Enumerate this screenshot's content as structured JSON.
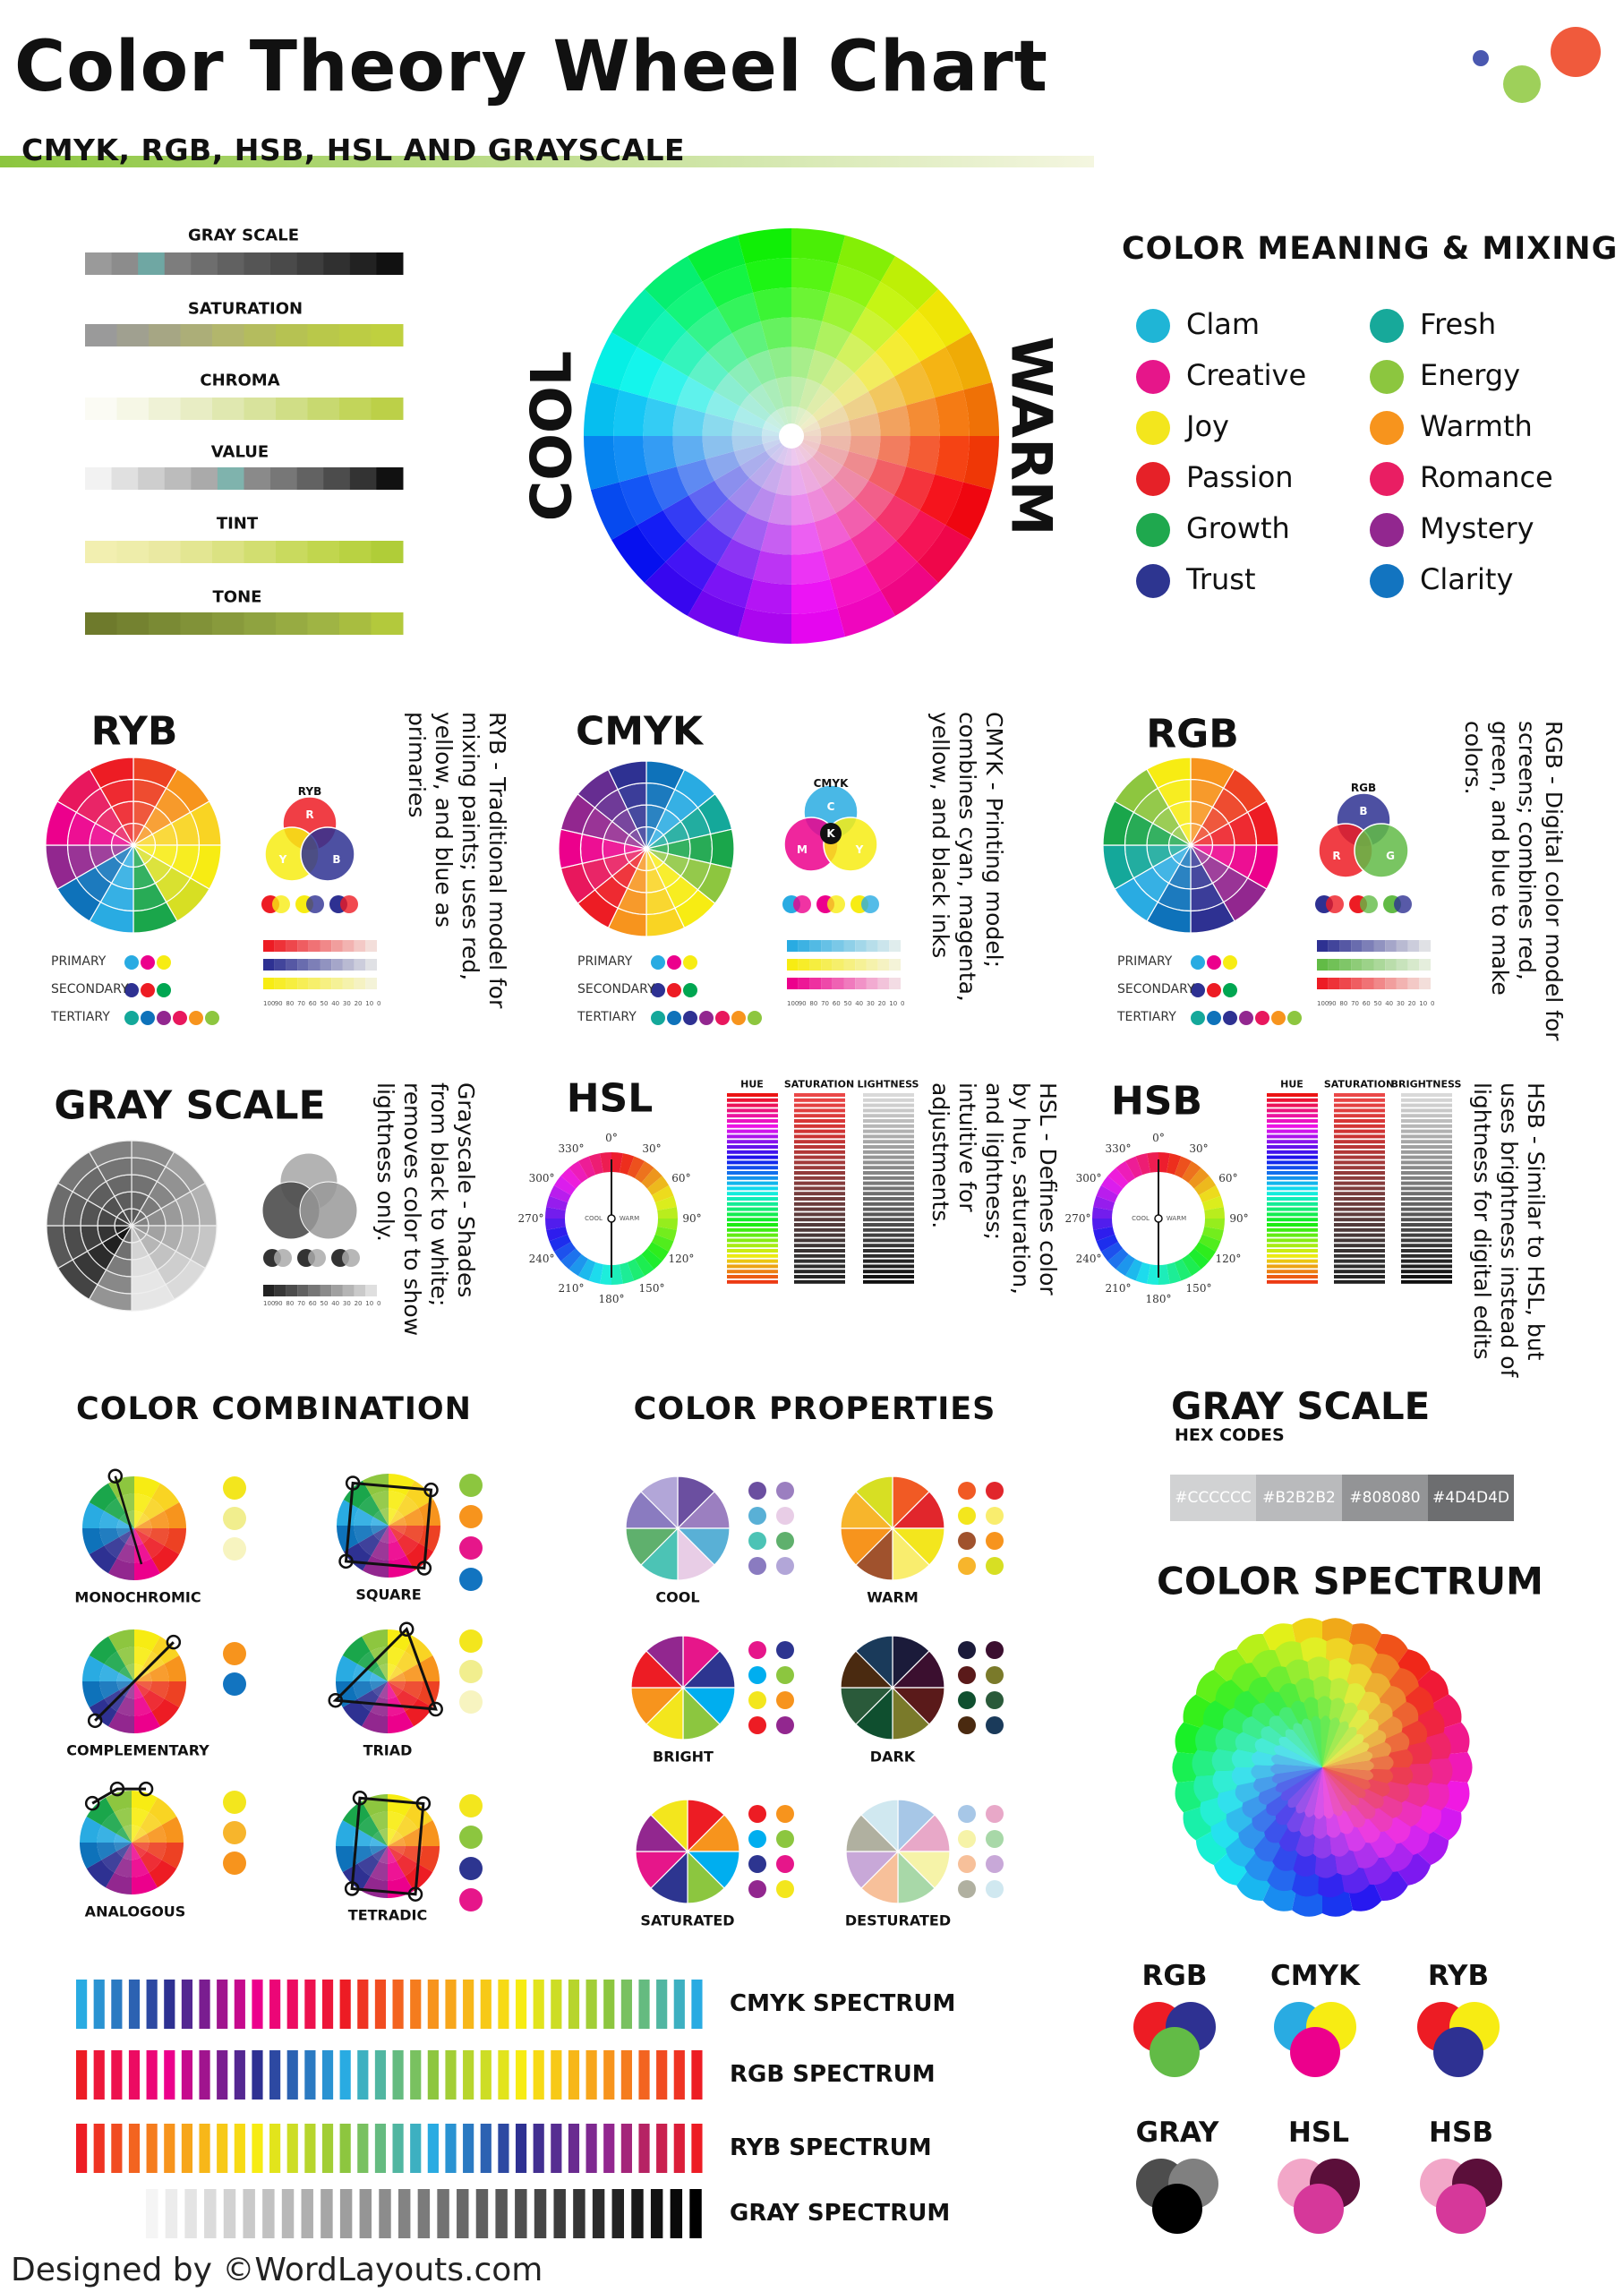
{
  "header": {
    "title": "Color Theory Wheel Chart",
    "subtitle": "CMYK, RGB, HSB, HSL AND GRAYSCALE"
  },
  "scales": [
    {
      "label": "GRAY SCALE",
      "colors": [
        "#9a9a9a",
        "#8c8c8c",
        "#6fa7a3",
        "#7d7d7d",
        "#6e6e6e",
        "#616161",
        "#555",
        "#4a4a4a",
        "#3e3e3e",
        "#303030",
        "#222",
        "#111"
      ]
    },
    {
      "label": "SATURATION",
      "colors": [
        "#9a9a9a",
        "#a0a090",
        "#a6a684",
        "#acae78",
        "#b2b66c",
        "#b4bc5e",
        "#b6c252",
        "#b9c84a",
        "#bccc44",
        "#bfd03f"
      ]
    },
    {
      "label": "CHROMA",
      "colors": [
        "#fbfbf4",
        "#f6f7e6",
        "#eff2d6",
        "#e8edc4",
        "#e0e8b0",
        "#d8e39c",
        "#d0de86",
        "#c8d970",
        "#c2d55a",
        "#bcd048"
      ]
    },
    {
      "label": "VALUE",
      "colors": [
        "#f2f2f2",
        "#e0e0e0",
        "#cecece",
        "#bcbcbc",
        "#aaaaaa",
        "#7fb3ad",
        "#8a8a8a",
        "#777",
        "#626262",
        "#4c4c4c",
        "#333",
        "#111"
      ]
    },
    {
      "label": "TINT",
      "colors": [
        "#f2efb0",
        "#eeedaa",
        "#eae9a2",
        "#e3e692",
        "#dbe282",
        "#d2de70",
        "#c9da5e",
        "#c1d64e",
        "#b9d242",
        "#b0cd38"
      ]
    },
    {
      "label": "TONE",
      "colors": [
        "#6e7a2c",
        "#748230",
        "#7a8a34",
        "#819238",
        "#889a3c",
        "#8fa340",
        "#97ab42",
        "#9fb444",
        "#a8bd40",
        "#b3c93c"
      ]
    }
  ],
  "hero": {
    "cool": "COOL",
    "warm": "WARM"
  },
  "meaning": {
    "title": "COLOR MEANING & MIXING",
    "items": [
      {
        "label": "Clam",
        "color": "#1fb5d6"
      },
      {
        "label": "Fresh",
        "color": "#17a99a"
      },
      {
        "label": "Creative",
        "color": "#e6168a"
      },
      {
        "label": "Energy",
        "color": "#8cc63f"
      },
      {
        "label": "Joy",
        "color": "#f3e61d"
      },
      {
        "label": "Warmth",
        "color": "#f7941d"
      },
      {
        "label": "Passion",
        "color": "#e62128"
      },
      {
        "label": "Romance",
        "color": "#e91e63"
      },
      {
        "label": "Growth",
        "color": "#1fa84e"
      },
      {
        "label": "Mystery",
        "color": "#92278f"
      },
      {
        "label": "Trust",
        "color": "#2d3590"
      },
      {
        "label": "Clarity",
        "color": "#1274c0"
      }
    ]
  },
  "models": [
    {
      "title": "RYB",
      "venn_title": "RYB",
      "venn": [
        "R",
        "Y",
        "B"
      ],
      "desc": "RYB - Traditional model for mixing paints; uses red, yellow, and blue as primaries",
      "levels": [
        "PRIMARY",
        "SECONDARY",
        "TERTIARY"
      ],
      "primary": [
        "#29abe2",
        "#ec008c",
        "#f7ec13"
      ],
      "secondary": [
        "#2e3192",
        "#ed1c24",
        "#00a651"
      ],
      "tertiary": [
        "#14a89a",
        "#0e72ba",
        "#92278f",
        "#e8175d",
        "#f7941d",
        "#8dc63f"
      ]
    },
    {
      "title": "CMYK",
      "venn_title": "CMYK",
      "venn": [
        "C",
        "M",
        "Y",
        "K"
      ],
      "desc": "CMYK - Printing model; combines cyan, magenta, yellow, and black inks",
      "levels": [
        "PRIMARY",
        "SECONDARY",
        "TERTIARY"
      ],
      "primary": [
        "#29abe2",
        "#ec008c",
        "#f7ec13"
      ],
      "secondary": [
        "#2e3192",
        "#ed1c24",
        "#00a651"
      ],
      "tertiary": [
        "#14a89a",
        "#0e72ba",
        "#2e3192",
        "#92278f",
        "#e8175d",
        "#f7941d",
        "#8dc63f"
      ]
    },
    {
      "title": "RGB",
      "venn_title": "RGB",
      "venn": [
        "B",
        "R",
        "G"
      ],
      "desc": "RGB - Digital color model for screens; combines red, green, and blue to make colors.",
      "levels": [
        "PRIMARY",
        "SECONDARY",
        "TERTIARY"
      ],
      "primary": [
        "#29abe2",
        "#ec008c",
        "#f7ec13"
      ],
      "secondary": [
        "#2e3192",
        "#ed1c24",
        "#00a651"
      ],
      "tertiary": [
        "#14a89a",
        "#0e72ba",
        "#2e3192",
        "#92278f",
        "#e8175d",
        "#f7941d",
        "#8dc63f"
      ]
    }
  ],
  "tint_scale": [
    "100",
    "90",
    "80",
    "70",
    "60",
    "50",
    "40",
    "30",
    "20",
    "10",
    "0"
  ],
  "grayscale_model": {
    "title": "GRAY SCALE",
    "desc": "Grayscale - Shades from black to white; removes color to show lightness only."
  },
  "hsl": {
    "title": "HSL",
    "columns": [
      "HUE",
      "SATURATION",
      "LIGHTNESS"
    ],
    "desc": "HSL - Defines color by hue, saturation, and lightness; intuitive for adjustments.",
    "center": [
      "COOL",
      "WARM"
    ]
  },
  "hsb": {
    "title": "HSB",
    "columns": [
      "HUE",
      "SATURATION",
      "BRIGHTNESS"
    ],
    "desc": "HSB - Similar to HSL, but uses brightness instead of lightness for digital edits",
    "center": [
      "COOL",
      "WARM"
    ]
  },
  "degrees": [
    "0°",
    "30°",
    "60°",
    "90°",
    "120°",
    "150°",
    "180°",
    "210°",
    "240°",
    "270°",
    "300°",
    "330°"
  ],
  "combination": {
    "title": "COLOR COMBINATION",
    "items": [
      {
        "label": "MONOCHROMIC",
        "swatches": [
          "#f3e61d",
          "#f1ee8e",
          "#f7f4c0"
        ]
      },
      {
        "label": "SQUARE",
        "swatches": [
          "#8cc63f",
          "#f7941d",
          "#e6168a",
          "#1274c0"
        ]
      },
      {
        "label": "COMPLEMENTARY",
        "swatches": [
          "#f7941d",
          "#1274c0"
        ]
      },
      {
        "label": "TRIAD",
        "swatches": [
          "#f3e61d",
          "#f1ee8e",
          "#f7f4c0"
        ]
      },
      {
        "label": "ANALOGOUS",
        "swatches": [
          "#f3e61d",
          "#f7b52c",
          "#f7941d"
        ]
      },
      {
        "label": "TETRADIC",
        "swatches": [
          "#f3e61d",
          "#8cc63f",
          "#2d3590",
          "#e6168a"
        ]
      }
    ]
  },
  "properties": {
    "title": "COLOR PROPERTIES",
    "items": [
      {
        "label": "COOL",
        "colors": [
          "#6b4fa0",
          "#9b7fc0",
          "#59b0d6",
          "#e8cde6",
          "#4cc3b5",
          "#5fb06d",
          "#8a7bc0",
          "#b2a6d8"
        ]
      },
      {
        "label": "WARM",
        "colors": [
          "#f15a24",
          "#e1262c",
          "#f3e61d",
          "#f9ed6e",
          "#a0522d",
          "#f7941d",
          "#f7b52c",
          "#d7df23"
        ]
      },
      {
        "label": "BRIGHT",
        "colors": [
          "#e6168a",
          "#2d3590",
          "#00aeef",
          "#8cc63f",
          "#f3e61d",
          "#f7941d",
          "#ed1c24",
          "#92278f"
        ]
      },
      {
        "label": "DARK",
        "colors": [
          "#1b1b3a",
          "#3b0f2f",
          "#5a1a1a",
          "#7a7a2a",
          "#0f4f2f",
          "#2a5a3a",
          "#4a2a10",
          "#1a3a5a"
        ]
      },
      {
        "label": "SATURATED",
        "colors": [
          "#ed1c24",
          "#f7941d",
          "#00aeef",
          "#8cc63f",
          "#2d3590",
          "#e6168a",
          "#92278f",
          "#f3e61d"
        ]
      },
      {
        "label": "DESTURATED",
        "colors": [
          "#a7c7e7",
          "#e8a8c8",
          "#f6f3a8",
          "#a8d8a8",
          "#f7c09a",
          "#c8a8d8",
          "#b0b0a0",
          "#d0e8f0"
        ]
      }
    ]
  },
  "gray_hex": {
    "title": "GRAY SCALE",
    "subtitle": "HEX CODES",
    "codes": [
      "#CCCCCC",
      "#B2B2B2",
      "#808080",
      "#4D4D4D"
    ]
  },
  "spectrum": {
    "title": "COLOR SPECTRUM"
  },
  "spectrum_bars": [
    {
      "label": "CMYK SPECTRUM",
      "stops": [
        "#29abe2",
        "#2e3192",
        "#ec008c",
        "#ed1c24",
        "#f7941d",
        "#f7ec13",
        "#8dc63f",
        "#29abe2"
      ]
    },
    {
      "label": "RGB SPECTRUM",
      "stops": [
        "#ed1c24",
        "#ec008c",
        "#2e3192",
        "#29abe2",
        "#8dc63f",
        "#f7ec13",
        "#f7941d",
        "#ed1c24"
      ]
    },
    {
      "label": "RYB SPECTRUM",
      "stops": [
        "#ed1c24",
        "#f7941d",
        "#f7ec13",
        "#8dc63f",
        "#29abe2",
        "#2e3192",
        "#92278f",
        "#ed1c24"
      ]
    },
    {
      "label": "GRAY SPECTRUM",
      "stops": [
        "#f5f5f5",
        "#000000"
      ]
    }
  ],
  "mixes": [
    {
      "label": "RGB",
      "colors": [
        "#ed1c24",
        "#2e3192",
        "#62bb46"
      ]
    },
    {
      "label": "CMYK",
      "colors": [
        "#29abe2",
        "#f7ec13",
        "#ec008c"
      ]
    },
    {
      "label": "RYB",
      "colors": [
        "#ed1c24",
        "#f7ec13",
        "#2e3192"
      ]
    },
    {
      "label": "GRAY",
      "colors": [
        "#4d4d4d",
        "#808080",
        "#000000"
      ]
    },
    {
      "label": "HSL",
      "colors": [
        "#f2a7c8",
        "#5b0f3a",
        "#d6389a"
      ]
    },
    {
      "label": "HSB",
      "colors": [
        "#f2a7c8",
        "#5b0f3a",
        "#d6389a"
      ]
    }
  ],
  "footer": "Designed by ©WordLayouts.com"
}
